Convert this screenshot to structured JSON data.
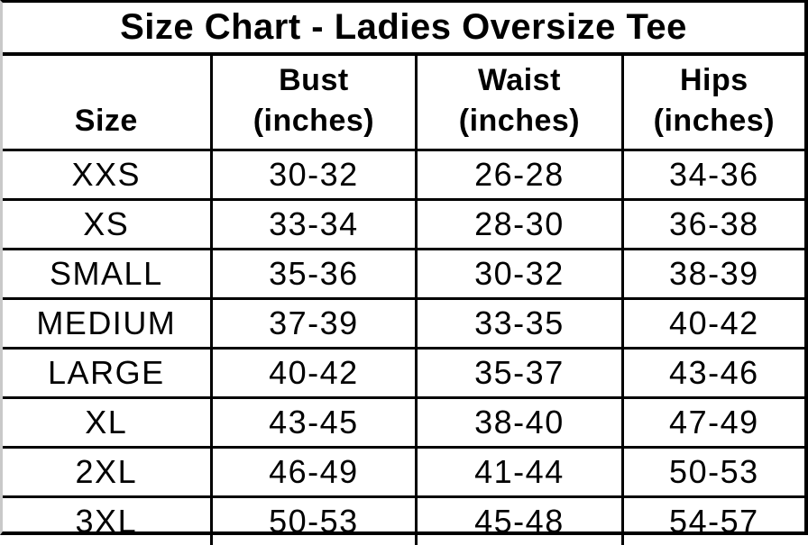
{
  "chart_data": {
    "type": "table",
    "title": "Size Chart - Ladies Oversize Tee",
    "columns": [
      "Size",
      "Bust (inches)",
      "Waist (inches)",
      "Hips (inches)"
    ],
    "rows": [
      [
        "XXS",
        "30-32",
        "26-28",
        "34-36"
      ],
      [
        "XS",
        "33-34",
        "28-30",
        "36-38"
      ],
      [
        "SMALL",
        "35-36",
        "30-32",
        "38-39"
      ],
      [
        "MEDIUM",
        "37-39",
        "33-35",
        "40-42"
      ],
      [
        "LARGE",
        "40-42",
        "35-37",
        "43-46"
      ],
      [
        "XL",
        "43-45",
        "38-40",
        "47-49"
      ],
      [
        "2XL",
        "46-49",
        "41-44",
        "50-53"
      ],
      [
        "3XL",
        "50-53",
        "45-48",
        "54-57"
      ]
    ]
  },
  "header": [
    {
      "label": "Size"
    },
    {
      "label": "Bust",
      "unit": "(inches)"
    },
    {
      "label": "Waist",
      "unit": "(inches)"
    },
    {
      "label": "Hips",
      "unit": "(inches)"
    }
  ],
  "colors": {
    "text": "#000000",
    "grid_border": "#000000",
    "left_edge": "#c9c9c9",
    "background": "#ffffff"
  }
}
